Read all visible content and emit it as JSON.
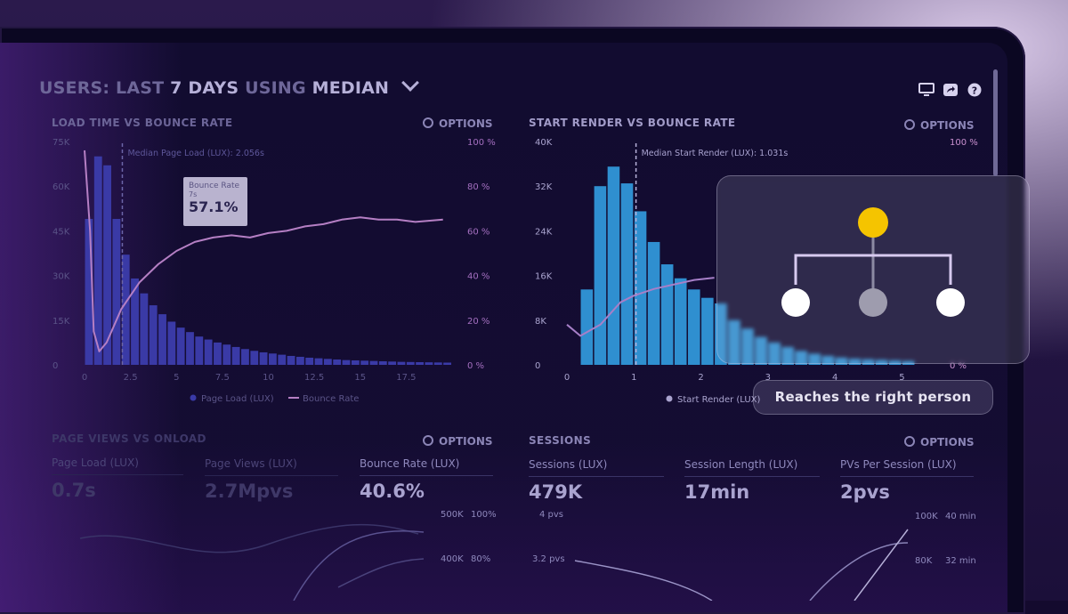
{
  "header": {
    "prefix": "USERS:",
    "mid1": "LAST",
    "mid2": "7 DAYS",
    "mid3": "USING",
    "metric": "MEDIAN"
  },
  "icons": [
    "monitor-icon",
    "share-icon",
    "help-icon"
  ],
  "panels": {
    "load": {
      "title": "LOAD TIME VS BOUNCE RATE",
      "options": "OPTIONS",
      "median_label": "Median Page Load (LUX): 2.056s",
      "tooltip": {
        "title": "Bounce Rate",
        "sub": "7s",
        "value": "57.1%"
      },
      "legend": [
        "Page Load (LUX)",
        "Bounce Rate"
      ]
    },
    "render": {
      "title": "START RENDER VS BOUNCE RATE",
      "options": "OPTIONS",
      "median_label": "Median Start Render (LUX): 1.031s",
      "legend": [
        "Start Render (LUX)"
      ]
    },
    "pageviews": {
      "title": "PAGE VIEWS VS ONLOAD",
      "options": "OPTIONS",
      "metrics": [
        {
          "label": "Page Load (LUX)",
          "value": "0.7s"
        },
        {
          "label": "Page Views (LUX)",
          "value": "2.7Mpvs"
        },
        {
          "label": "Bounce Rate (LUX)",
          "value": "40.6%"
        }
      ],
      "axis": [
        "500K",
        "100%",
        "400K",
        "80%"
      ]
    },
    "sessions": {
      "title": "SESSIONS",
      "options": "OPTIONS",
      "metrics": [
        {
          "label": "Sessions (LUX)",
          "value": "479K"
        },
        {
          "label": "Session Length (LUX)",
          "value": "17min"
        },
        {
          "label": "PVs Per Session (LUX)",
          "value": "2pvs"
        }
      ],
      "axis": [
        "4 pvs",
        "3.2 pvs",
        "100K",
        "40 min",
        "80K",
        "32 min"
      ]
    }
  },
  "overlay": {
    "caption": "Reaches the right person",
    "accent": "#f5c400"
  },
  "chart_data": [
    {
      "type": "bar",
      "title": "LOAD TIME VS BOUNCE RATE",
      "x_ticks": [
        "0",
        "2.5",
        "5",
        "7.5",
        "10",
        "12.5",
        "15",
        "17.5"
      ],
      "y_ticks": [
        "75K",
        "60K",
        "45K",
        "30K",
        "15K",
        "0"
      ],
      "y2_ticks": [
        "100 %",
        "80 %",
        "60 %",
        "40 %",
        "20 %",
        "0 %"
      ],
      "xlim": [
        0,
        20
      ],
      "ylim": [
        0,
        75000
      ],
      "y2lim": [
        0,
        100
      ],
      "bar_width": 0.5,
      "bar_x": [
        0,
        0.5,
        1,
        1.5,
        2,
        2.5,
        3,
        3.5,
        4,
        4.5,
        5,
        5.5,
        6,
        6.5,
        7,
        7.5,
        8,
        8.5,
        9,
        9.5,
        10,
        10.5,
        11,
        11.5,
        12,
        12.5,
        13,
        13.5,
        14,
        14.5,
        15,
        15.5,
        16,
        16.5,
        17,
        17.5,
        18,
        18.5,
        19,
        19.5
      ],
      "bar_values": [
        49000,
        70000,
        67000,
        49000,
        37000,
        29000,
        24000,
        20000,
        17000,
        14500,
        12500,
        11000,
        9500,
        8500,
        7500,
        6800,
        6000,
        5300,
        4700,
        4200,
        3800,
        3400,
        3000,
        2700,
        2400,
        2200,
        2000,
        1800,
        1600,
        1500,
        1400,
        1300,
        1200,
        1100,
        1000,
        950,
        900,
        850,
        800,
        750
      ],
      "median_x": 2.056,
      "line_x": [
        0,
        0.3,
        0.5,
        0.8,
        1.2,
        2,
        3,
        4,
        5,
        6,
        7,
        8,
        9,
        10,
        11,
        12,
        13,
        14,
        15,
        16,
        17,
        18,
        19.5
      ],
      "line_values": [
        96,
        60,
        15,
        6,
        10,
        25,
        37,
        45,
        51,
        55,
        57,
        58,
        57,
        59,
        60,
        62,
        63,
        65,
        66,
        65,
        65,
        64,
        65
      ],
      "legend": [
        "Page Load (LUX)",
        "Bounce Rate"
      ]
    },
    {
      "type": "bar",
      "title": "START RENDER VS BOUNCE RATE",
      "x_ticks": [
        "0",
        "1",
        "2",
        "3",
        "4",
        "5"
      ],
      "y_ticks": [
        "40K",
        "32K",
        "24K",
        "16K",
        "8K",
        "0"
      ],
      "y2_ticks": [
        "100 %",
        "0 %"
      ],
      "xlim": [
        0,
        5.3
      ],
      "ylim": [
        0,
        40000
      ],
      "y2lim": [
        0,
        100
      ],
      "bar_width": 0.2,
      "bar_x": [
        0.2,
        0.4,
        0.6,
        0.8,
        1.0,
        1.2,
        1.4,
        1.6,
        1.8,
        2.0,
        2.2,
        2.4,
        2.6,
        2.8,
        3.0,
        3.2,
        3.4,
        3.6,
        3.8,
        4.0,
        4.2,
        4.4,
        4.6,
        4.8,
        5.0
      ],
      "bar_values": [
        13500,
        32000,
        35500,
        32500,
        27500,
        22000,
        18000,
        15500,
        13500,
        12000,
        11000,
        8000,
        6500,
        5000,
        4000,
        3200,
        2500,
        2000,
        1600,
        1300,
        1100,
        1000,
        900,
        800,
        700
      ],
      "median_x": 1.031,
      "line_x": [
        0,
        0.2,
        0.5,
        0.8,
        1.0,
        1.3,
        1.6,
        1.9,
        2.2
      ],
      "line_values": [
        18,
        13,
        18,
        28,
        31,
        34,
        36,
        38,
        39
      ],
      "legend": [
        "Start Render (LUX)"
      ]
    }
  ]
}
